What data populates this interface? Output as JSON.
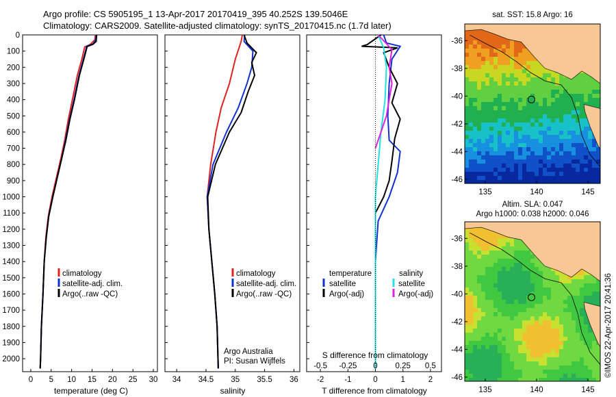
{
  "header": {
    "line1": "Argo profile: CS 5905195_1 13-Apr-2017 20170419_395 40.252S 139.5046E",
    "line2": "Climatology: CARS2009. Satellite-adjusted climatology: synTS_20170415.nc (1.7d later)"
  },
  "colors": {
    "climatology": "#e02020",
    "satellite": "#1030d0",
    "argo": "#000000",
    "salinity_satellite": "#20e0e0",
    "salinity_argo": "#e020e0",
    "land": "#f7c896"
  },
  "chart_data": [
    {
      "id": "temperature",
      "type": "line",
      "xlabel": "temperature (deg C)",
      "xlim": [
        -2,
        31
      ],
      "xticks": [
        0,
        5,
        10,
        15,
        20,
        25,
        30
      ],
      "ylim": [
        0,
        2080
      ],
      "yticks": [
        0,
        100,
        200,
        300,
        400,
        500,
        600,
        700,
        800,
        900,
        1000,
        1100,
        1200,
        1300,
        1400,
        1500,
        1600,
        1700,
        1800,
        1900,
        2000
      ],
      "legend": [
        "climatology",
        "satellite-adj. clim.",
        "Argo(..raw -QC)"
      ],
      "series": [
        {
          "name": "climatology",
          "color": "#e02020",
          "points": [
            [
              15.8,
              0
            ],
            [
              15.7,
              30
            ],
            [
              14.5,
              60
            ],
            [
              13.2,
              75
            ],
            [
              12.5,
              150
            ],
            [
              11.4,
              250
            ],
            [
              10.2,
              400
            ],
            [
              9.2,
              520
            ],
            [
              8.3,
              650
            ],
            [
              7.4,
              760
            ],
            [
              6.3,
              880
            ],
            [
              5.2,
              1000
            ],
            [
              4.3,
              1120
            ],
            [
              3.7,
              1250
            ],
            [
              3.3,
              1400
            ],
            [
              3.0,
              1600
            ],
            [
              2.6,
              1800
            ],
            [
              2.4,
              2000
            ],
            [
              2.3,
              2060
            ]
          ]
        },
        {
          "name": "satellite-adj. clim.",
          "color": "#1030d0",
          "points": [
            [
              16.0,
              0
            ],
            [
              15.9,
              30
            ],
            [
              15.3,
              55
            ],
            [
              13.7,
              70
            ],
            [
              12.9,
              150
            ],
            [
              11.8,
              250
            ],
            [
              10.6,
              400
            ],
            [
              9.5,
              520
            ],
            [
              8.5,
              650
            ],
            [
              7.6,
              760
            ],
            [
              6.5,
              880
            ],
            [
              5.4,
              1000
            ],
            [
              4.4,
              1120
            ],
            [
              3.8,
              1250
            ],
            [
              3.3,
              1400
            ],
            [
              3.0,
              1600
            ],
            [
              2.6,
              1800
            ],
            [
              2.4,
              2000
            ],
            [
              2.3,
              2060
            ]
          ]
        },
        {
          "name": "Argo(..raw -QC)",
          "color": "#000000",
          "points": [
            [
              16.1,
              0
            ],
            [
              16.0,
              40
            ],
            [
              15.2,
              58
            ],
            [
              13.8,
              72
            ],
            [
              13.0,
              150
            ],
            [
              11.9,
              250
            ],
            [
              10.7,
              400
            ],
            [
              9.6,
              520
            ],
            [
              8.6,
              650
            ],
            [
              7.6,
              760
            ],
            [
              6.5,
              880
            ],
            [
              5.4,
              1000
            ],
            [
              4.4,
              1120
            ],
            [
              3.8,
              1250
            ],
            [
              3.3,
              1400
            ],
            [
              3.0,
              1600
            ],
            [
              2.6,
              1800
            ],
            [
              2.4,
              2000
            ],
            [
              2.3,
              2060
            ]
          ]
        }
      ]
    },
    {
      "id": "salinity",
      "type": "line",
      "xlabel": "salinity",
      "xlim": [
        33.8,
        36.1
      ],
      "xticks": [
        34,
        34.5,
        35,
        35.5,
        36
      ],
      "ylim": [
        0,
        2080
      ],
      "legend": [
        "climatology",
        "satellite-adj. clim.",
        "Argo(..raw -QC)"
      ],
      "annotation": [
        "Argo Australia",
        "PI: Susan Wijffels"
      ],
      "series": [
        {
          "name": "climatology",
          "color": "#e02020",
          "points": [
            [
              35.12,
              0
            ],
            [
              35.1,
              40
            ],
            [
              35.0,
              150
            ],
            [
              34.9,
              300
            ],
            [
              34.76,
              450
            ],
            [
              34.67,
              600
            ],
            [
              34.58,
              800
            ],
            [
              34.52,
              1000
            ],
            [
              34.55,
              1200
            ],
            [
              34.6,
              1400
            ],
            [
              34.65,
              1600
            ],
            [
              34.69,
              1800
            ],
            [
              34.71,
              2060
            ]
          ]
        },
        {
          "name": "satellite-adj. clim.",
          "color": "#1030d0",
          "points": [
            [
              35.16,
              0
            ],
            [
              35.15,
              40
            ],
            [
              35.3,
              100
            ],
            [
              35.28,
              200
            ],
            [
              35.2,
              300
            ],
            [
              35.05,
              450
            ],
            [
              34.85,
              600
            ],
            [
              34.62,
              800
            ],
            [
              34.52,
              1000
            ],
            [
              34.55,
              1200
            ],
            [
              34.6,
              1400
            ],
            [
              34.65,
              1600
            ],
            [
              34.69,
              1800
            ],
            [
              34.71,
              2060
            ]
          ]
        },
        {
          "name": "Argo(..raw -QC)",
          "color": "#000000",
          "points": [
            [
              35.15,
              0
            ],
            [
              35.2,
              50
            ],
            [
              35.36,
              110
            ],
            [
              35.28,
              170
            ],
            [
              35.33,
              250
            ],
            [
              35.22,
              350
            ],
            [
              35.1,
              480
            ],
            [
              34.9,
              600
            ],
            [
              34.66,
              800
            ],
            [
              34.53,
              1000
            ],
            [
              34.55,
              1200
            ],
            [
              34.6,
              1400
            ],
            [
              34.65,
              1600
            ],
            [
              34.69,
              1800
            ],
            [
              34.71,
              2060
            ]
          ]
        }
      ]
    },
    {
      "id": "differences",
      "type": "line",
      "xlabel": "T difference from climatology",
      "xlabel_top": "S difference from climatology",
      "xlim": [
        -2.5,
        2.4
      ],
      "xticks": [
        -2,
        -1,
        0,
        1,
        2
      ],
      "s_ticks": [
        "-0.5",
        "-0.25",
        "0",
        "0.25",
        "0.5"
      ],
      "ylim": [
        0,
        2080
      ],
      "legend_temperature": [
        "temperature",
        "satellite",
        "Argo(-adj)"
      ],
      "legend_salinity": [
        "salinity",
        "satellite",
        "Argo(-adj)"
      ],
      "series": [
        {
          "name": "temperature satellite",
          "color": "#1030d0",
          "points": [
            [
              0.3,
              0
            ],
            [
              0.4,
              50
            ],
            [
              0.9,
              70
            ],
            [
              0.6,
              150
            ],
            [
              0.5,
              300
            ],
            [
              0.45,
              500
            ],
            [
              0.5,
              650
            ],
            [
              0.9,
              720
            ],
            [
              0.8,
              850
            ],
            [
              0.5,
              1000
            ],
            [
              0.1,
              1150
            ],
            [
              0,
              1400
            ],
            [
              0,
              2060
            ]
          ]
        },
        {
          "name": "temperature Argo(-adj)",
          "color": "#000000",
          "points": [
            [
              0.2,
              0
            ],
            [
              -0.3,
              60
            ],
            [
              -0.5,
              70
            ],
            [
              0.8,
              80
            ],
            [
              0.3,
              110
            ],
            [
              0.5,
              200
            ],
            [
              0.8,
              300
            ],
            [
              0.6,
              420
            ],
            [
              0.9,
              520
            ],
            [
              0.7,
              640
            ],
            [
              0.6,
              780
            ],
            [
              0.5,
              900
            ],
            [
              0.3,
              1000
            ],
            [
              0,
              1100
            ],
            [
              0,
              2060
            ]
          ]
        },
        {
          "name": "salinity satellite",
          "color": "#20e0e0",
          "points": [
            [
              0.1,
              0
            ],
            [
              0.3,
              80
            ],
            [
              0.4,
              200
            ],
            [
              0.35,
              400
            ],
            [
              0.2,
              600
            ],
            [
              0.1,
              800
            ],
            [
              0,
              1000
            ],
            [
              0,
              2060
            ]
          ]
        },
        {
          "name": "salinity Argo(-adj)",
          "color": "#e020e0",
          "points": [
            [
              0.1,
              0
            ],
            [
              0.6,
              90
            ],
            [
              0.5,
              200
            ],
            [
              0.6,
              300
            ],
            [
              0.5,
              400
            ],
            [
              0.4,
              500
            ],
            [
              0.2,
              600
            ],
            [
              0,
              700
            ]
          ]
        }
      ]
    },
    {
      "id": "sst-map",
      "type": "heatmap",
      "title": "sat. SST: 15.8  Argo: 16",
      "xticks": [
        135,
        140,
        145
      ],
      "yticks": [
        -36,
        -38,
        -40,
        -42,
        -44,
        -46
      ],
      "xlim": [
        133,
        146.2
      ],
      "ylim": [
        -46.3,
        -34.8
      ],
      "float_position": [
        139.5,
        -40.25
      ]
    },
    {
      "id": "sla-map",
      "type": "heatmap",
      "title_line1": "Altim. SLA: 0.047",
      "title_line2": "Argo h1000: 0.038 h2000: 0.046",
      "xticks": [
        135,
        140,
        145
      ],
      "yticks": [
        -36,
        -38,
        -40,
        -42,
        -44,
        -46
      ],
      "xlim": [
        133,
        146.2
      ],
      "ylim": [
        -46.3,
        -34.8
      ],
      "float_position": [
        139.5,
        -40.25
      ]
    }
  ],
  "credit": "©IMOS 22-Apr-2017 20:41:36"
}
